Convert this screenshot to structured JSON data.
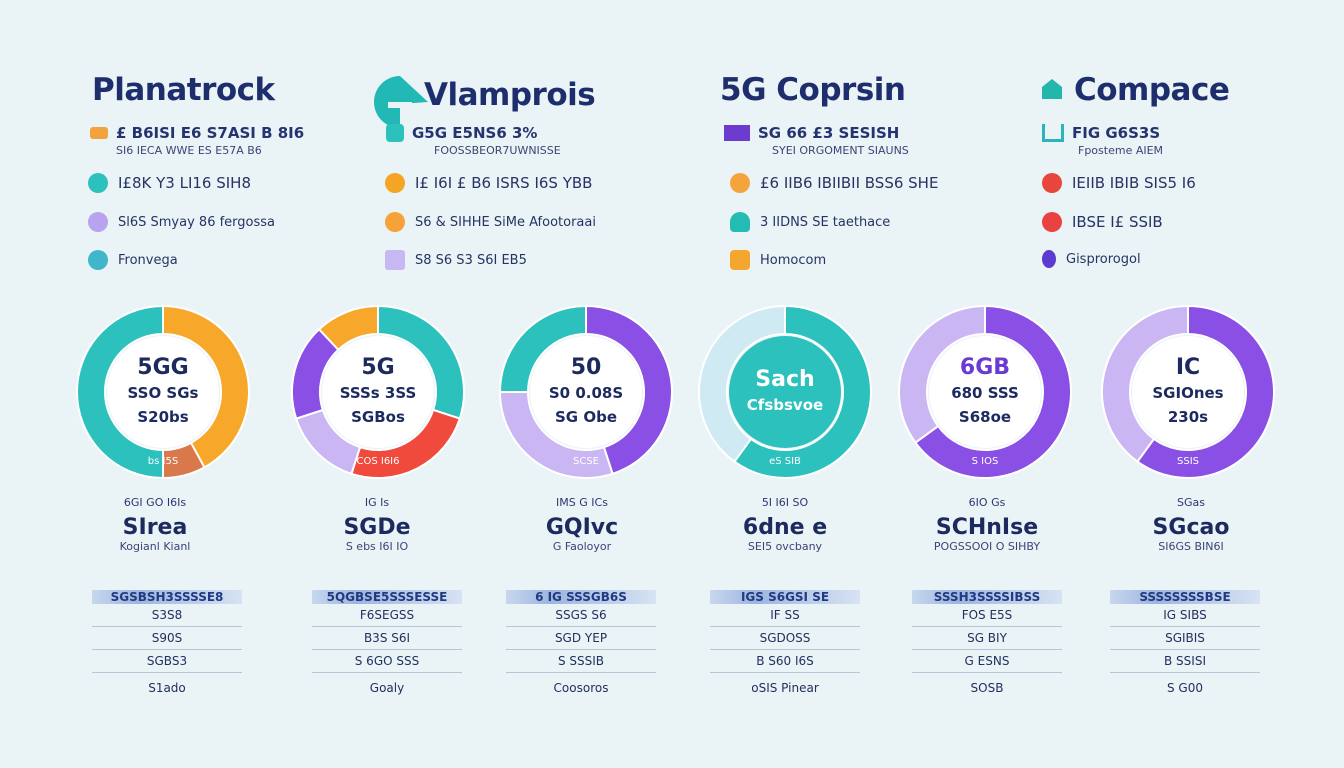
{
  "columns": [
    {
      "title": "Planatrock",
      "sub1": "£ B6ISI E6 S7ASI B 8I6",
      "sub2": "SI6 IECA WWE ES E57A B6",
      "features": [
        {
          "text": "I£8K Y3 LI16 SIH8",
          "icon": "teal-circle-icon",
          "color": "#2cc1bd"
        },
        {
          "text": "Sl6S Smyay 86 fergossa",
          "icon": "purple-circle-icon",
          "color": "#a98be6"
        },
        {
          "text": "Fronvega",
          "icon": "info-icon",
          "color": "#3fb6c9"
        }
      ],
      "donut_center": [
        "5GG",
        "SSO SGs",
        "S20bs"
      ],
      "donut_label": "bs I5S",
      "stat_mini": "6GI  GO I6Is",
      "stat_big": "SIrea",
      "stat_small": "Kogianl Kianl",
      "table_header": "SGSBSH3SSSSE8",
      "table_rows": [
        "S3S8",
        "S90S",
        "SGBS3"
      ],
      "table_foot": "S1ado"
    },
    {
      "title": "Vlamprois",
      "sub1": "G5G  E5NS6 3%",
      "sub2": "FOOSSBEOR7UWNISSE",
      "features": [
        {
          "text": "I£ I6I  £ B6 ISRS I6S YBB",
          "icon": "orange-circle-icon",
          "color": "#f5a524"
        },
        {
          "text": "S6 & SIHHE SiMe Afootoraai",
          "icon": "orange-ring-icon",
          "color": "#f7a236"
        },
        {
          "text": "S8 S6 S3 S6I  EB5",
          "icon": "purple-pen-icon",
          "color": "#b9a6ee"
        }
      ],
      "donut_center": [
        "5G",
        "SSSs 3SS",
        "SGBos"
      ],
      "donut_label": "COS  I6I6",
      "stat_mini": "IG  Is",
      "stat_big": "SGDe",
      "stat_small": "S ebs I6I  IO",
      "table_header": "5QGBSE5SSSESSE",
      "table_rows": [
        "F6SEGSS",
        "B3S  S6I",
        "S 6GO  SSS"
      ],
      "table_foot": "Goaly"
    },
    {
      "title": "5G Coprsin",
      "sub1": "SG 66 £3 SESISH",
      "sub2": "SYEI ORGOMENT SIAUNS",
      "features": [
        {
          "text": "£6 IIB6 IBIIBII BSS6 SHE",
          "icon": "orange-cog-icon",
          "color": "#f4a43a"
        },
        {
          "text": "3 IIDNS SE  taethace",
          "icon": "teal-cloud-icon",
          "color": "#22bcb3"
        },
        {
          "text": "Homocom",
          "icon": "orange-hand-icon",
          "color": "#f5a62e"
        }
      ],
      "donut_center": [
        "50",
        "S0 0.08S",
        "SG Obe"
      ],
      "donut_label": "SCSE",
      "stat_mini": "IMS  G  ICs",
      "stat_big": "GQIvc",
      "stat_small": "G Faoloyor",
      "table_header": "6 IG  SSSGB6S",
      "table_rows": [
        "SSGS  S6",
        "SGD  YEP",
        "S  SSSIB"
      ],
      "table_foot": "Coosoros"
    },
    {
      "title": "Compace",
      "sub1": "FIG  G6S3S",
      "sub2": "Fposteme AIEM",
      "features": [
        {
          "text": "IEIIB IBIB SIS5 I6",
          "icon": "red-shield-icon",
          "color": "#e8453c"
        },
        {
          "text": "IBSE I£  SSIB",
          "icon": "red-heart-icon",
          "color": "#e94242"
        },
        {
          "text": "Gisprorogol",
          "icon": "purple-drop-icon",
          "color": "#5b3bd0"
        }
      ],
      "donut_center": [
        "Sach",
        "Cfsbsvoe"
      ],
      "donut_label": "eS SIB",
      "stat_mini": "5I  I6I  SO",
      "stat_big": "6dne e",
      "stat_small": "SEI5 ovcbany",
      "table_header": "IGS  S6GSI  SE",
      "table_rows": [
        "IF SS",
        "SGDOSS",
        "B  S60 I6S"
      ],
      "table_foot": "oSIS Pinear"
    },
    {
      "title": "",
      "sub1": "",
      "sub2": "",
      "features": [],
      "donut_center": [
        "6GB",
        "680 SSS",
        "S68oe"
      ],
      "donut_label": "S IOS",
      "stat_mini": "6IO  Gs",
      "stat_big": "SCHnIse",
      "stat_small": "POGSSOOI  O SIHBY",
      "table_header": "SSSH3SSSSIBSS",
      "table_rows": [
        "FOS  E5S",
        "SG BIY",
        "G  ESNS"
      ],
      "table_foot": "SOSB"
    },
    {
      "title": "",
      "sub1": "",
      "sub2": "",
      "features": [],
      "donut_center": [
        "IC",
        "SGIOnes",
        "230s"
      ],
      "donut_label": "SSIS",
      "stat_mini": "SGas",
      "stat_big": "SGcao",
      "stat_small": "SI6GS BIN6I",
      "table_header": "SSSSSSSSBSE",
      "table_rows": [
        "IG  SIBS",
        "SGIBIS",
        "B SSISI"
      ],
      "table_foot": "S  G00"
    }
  ],
  "chart_data": [
    {
      "type": "pie",
      "title": "",
      "categories": [
        "orange",
        "orange-dark",
        "teal"
      ],
      "values": [
        42,
        8,
        50
      ]
    },
    {
      "type": "pie",
      "title": "",
      "categories": [
        "teal",
        "red",
        "lavender",
        "purple",
        "orange"
      ],
      "values": [
        30,
        25,
        15,
        18,
        12
      ]
    },
    {
      "type": "pie",
      "title": "",
      "categories": [
        "purple",
        "lavender",
        "teal"
      ],
      "values": [
        45,
        30,
        25
      ]
    },
    {
      "type": "pie",
      "title": "",
      "categories": [
        "teal",
        "light"
      ],
      "values": [
        60,
        40
      ]
    },
    {
      "type": "pie",
      "title": "",
      "categories": [
        "purple",
        "lavender"
      ],
      "values": [
        65,
        35
      ]
    },
    {
      "type": "pie",
      "title": "",
      "categories": [
        "purple",
        "lavender"
      ],
      "values": [
        60,
        40
      ]
    }
  ],
  "colors": {
    "teal": "#2cc1bd",
    "orange": "#f7a82a",
    "purple": "#8a4fe4",
    "lavender": "#c9b6f3",
    "red": "#ef4a3c",
    "light": "#cfeaf2"
  }
}
